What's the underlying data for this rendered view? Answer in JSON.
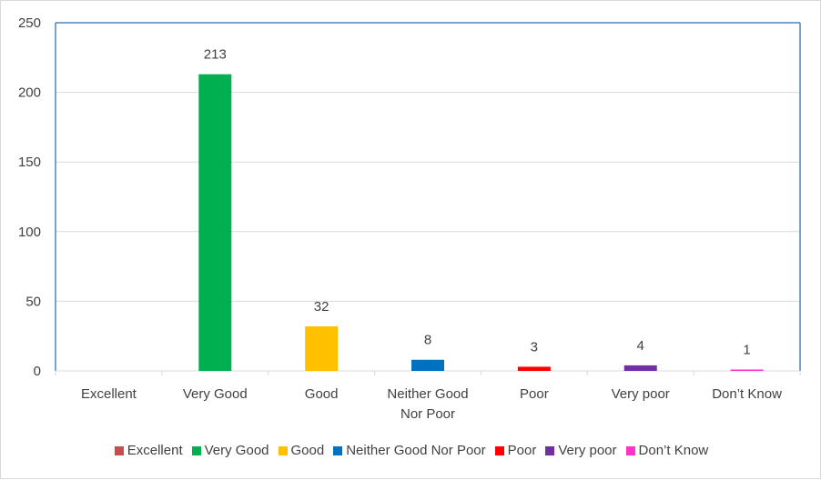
{
  "chart_data": {
    "type": "bar",
    "categories": [
      [
        "Excellent"
      ],
      [
        "Very Good"
      ],
      [
        "Good"
      ],
      [
        "Neither Good",
        "Nor Poor"
      ],
      [
        "Poor"
      ],
      [
        "Very poor"
      ],
      [
        "Don’t Know"
      ]
    ],
    "values": [
      0,
      213,
      32,
      8,
      3,
      4,
      1
    ],
    "data_labels": [
      "",
      "213",
      "32",
      "8",
      "3",
      "4",
      "1"
    ],
    "colors": [
      "#c0504d",
      "#00b050",
      "#ffc000",
      "#0070c0",
      "#ff0000",
      "#7030a0",
      "#ff33cc"
    ],
    "ylim": [
      0,
      250
    ],
    "yticks": [
      0,
      50,
      100,
      150,
      200,
      250
    ],
    "grid": true,
    "legend_position": "bottom",
    "legend": [
      "Excellent",
      "Very Good",
      "Good",
      "Neither Good Nor Poor",
      "Poor",
      "Very poor",
      "Don’t Know"
    ],
    "title": "",
    "xlabel": "",
    "ylabel": "",
    "axis_color": "#4f81bd",
    "grid_color": "#d9d9d9"
  }
}
